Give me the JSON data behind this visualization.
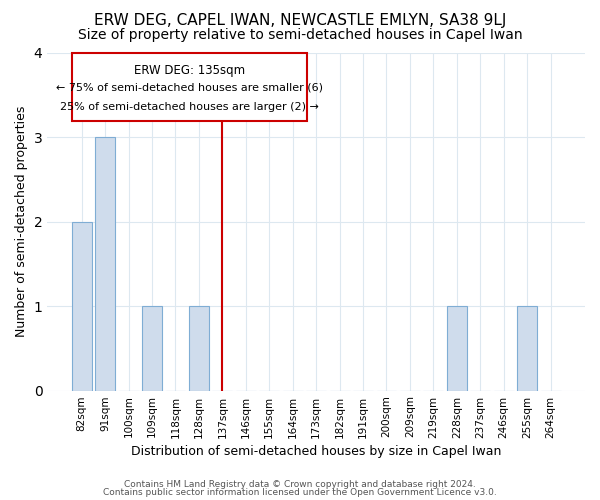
{
  "title": "ERW DEG, CAPEL IWAN, NEWCASTLE EMLYN, SA38 9LJ",
  "subtitle": "Size of property relative to semi-detached houses in Capel Iwan",
  "xlabel": "Distribution of semi-detached houses by size in Capel Iwan",
  "ylabel": "Number of semi-detached properties",
  "categories": [
    "82sqm",
    "91sqm",
    "100sqm",
    "109sqm",
    "118sqm",
    "128sqm",
    "137sqm",
    "146sqm",
    "155sqm",
    "164sqm",
    "173sqm",
    "182sqm",
    "191sqm",
    "200sqm",
    "209sqm",
    "219sqm",
    "228sqm",
    "237sqm",
    "246sqm",
    "255sqm",
    "264sqm"
  ],
  "values": [
    2,
    3,
    0,
    1,
    0,
    1,
    0,
    0,
    0,
    0,
    0,
    0,
    0,
    0,
    0,
    0,
    1,
    0,
    0,
    1,
    0
  ],
  "bar_color": "#cfdcec",
  "bar_edge_color": "#7fadd4",
  "marker_x": "137sqm",
  "marker_color": "#cc0000",
  "annotation_title": "ERW DEG: 135sqm",
  "annotation_line1": "← 75% of semi-detached houses are smaller (6)",
  "annotation_line2": "25% of semi-detached houses are larger (2) →",
  "annotation_box_color": "#cc0000",
  "ylim": [
    0,
    4
  ],
  "yticks": [
    0,
    1,
    2,
    3,
    4
  ],
  "footer1": "Contains HM Land Registry data © Crown copyright and database right 2024.",
  "footer2": "Contains public sector information licensed under the Open Government Licence v3.0.",
  "bg_color": "#ffffff",
  "plot_bg_color": "#ffffff",
  "title_fontsize": 11,
  "subtitle_fontsize": 10
}
